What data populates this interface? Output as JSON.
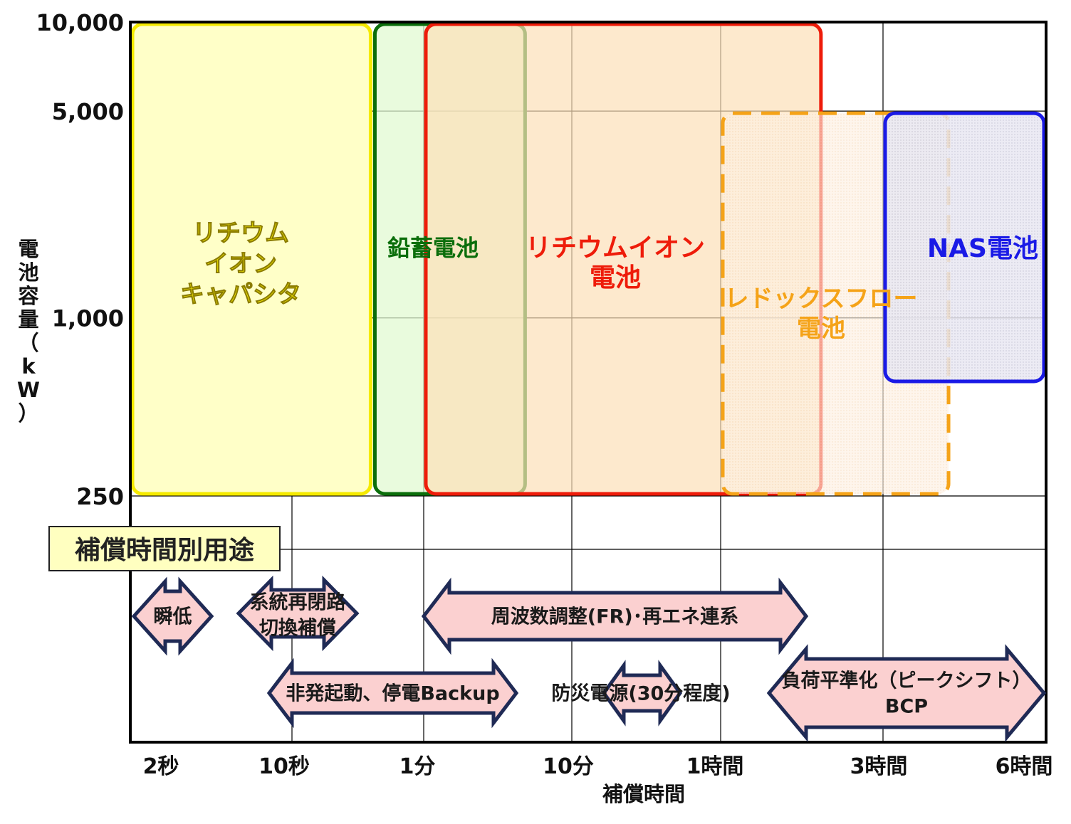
{
  "chart_data": {
    "type": "range-area",
    "title": "",
    "xlabel": "補償時間",
    "ylabel": "電池容量（kW）",
    "x_ticks": [
      "2秒",
      "10秒",
      "1分",
      "10分",
      "1時間",
      "3時間",
      "6時間"
    ],
    "y_ticks": [
      "10,000",
      "5,000",
      "1,000",
      "250"
    ],
    "y_scale": "log",
    "grid": true,
    "series": [
      {
        "name": "リチウムイオンキャパシタ",
        "label": [
          "リチウム",
          "イオン",
          "キャパシタ"
        ],
        "color": "#f5ea00",
        "fill": "#ffffc8",
        "x": [
          "2秒",
          "30秒"
        ],
        "y": [
          250,
          10000
        ],
        "style": "solid"
      },
      {
        "name": "鉛蓄電池",
        "label": [
          "鉛蓄電池"
        ],
        "color": "#0b6e0b",
        "fill": "#eafbd8",
        "x": [
          "30秒",
          "5分"
        ],
        "y": [
          250,
          10000
        ],
        "style": "solid"
      },
      {
        "name": "リチウムイオン電池",
        "label": [
          "リチウムイオン",
          "電池"
        ],
        "color": "#ee1c0a",
        "fill": "#fdebd0",
        "x": [
          "1分",
          "2時間"
        ],
        "y": [
          250,
          10000
        ],
        "style": "solid"
      },
      {
        "name": "レドックスフロー電池",
        "label": [
          "レドックスフロー",
          "電池"
        ],
        "color": "#f5a318",
        "fill": "#fbeee0",
        "x": [
          "1時間",
          "4時間"
        ],
        "y": [
          250,
          5000
        ],
        "style": "dashed"
      },
      {
        "name": "NAS電池",
        "label": [
          "NAS電池"
        ],
        "color": "#1a1ae6",
        "fill": "#ecebf3",
        "x": [
          "3時間",
          "6時間"
        ],
        "y": [
          600,
          5000
        ],
        "style": "solid"
      }
    ],
    "applications_title": "補償時間別用途",
    "applications": [
      {
        "label": [
          "瞬低"
        ],
        "from": "2秒",
        "to": "5秒"
      },
      {
        "label": [
          "系統再閉路",
          "切換補償"
        ],
        "from": "8秒",
        "to": "25秒"
      },
      {
        "label": [
          "周波数調整(FR)･再エネ連系"
        ],
        "from": "1分",
        "to": "2時間"
      },
      {
        "label": [
          "非発起動、停電Backup"
        ],
        "from": "10秒",
        "to": "5分"
      },
      {
        "label": [
          "防災電源(30分程度)"
        ],
        "from": "20分",
        "to": "40分"
      },
      {
        "label": [
          "負荷平準化（ピークシフト）",
          "BCP"
        ],
        "from": "2時間",
        "to": "6時間"
      }
    ]
  },
  "colors": {
    "axis": "#000000",
    "grid": "#000000",
    "arrow_fill": "#fbd0d0",
    "arrow_stroke": "#1f2a55",
    "title_box_fill": "#ffffc0"
  }
}
